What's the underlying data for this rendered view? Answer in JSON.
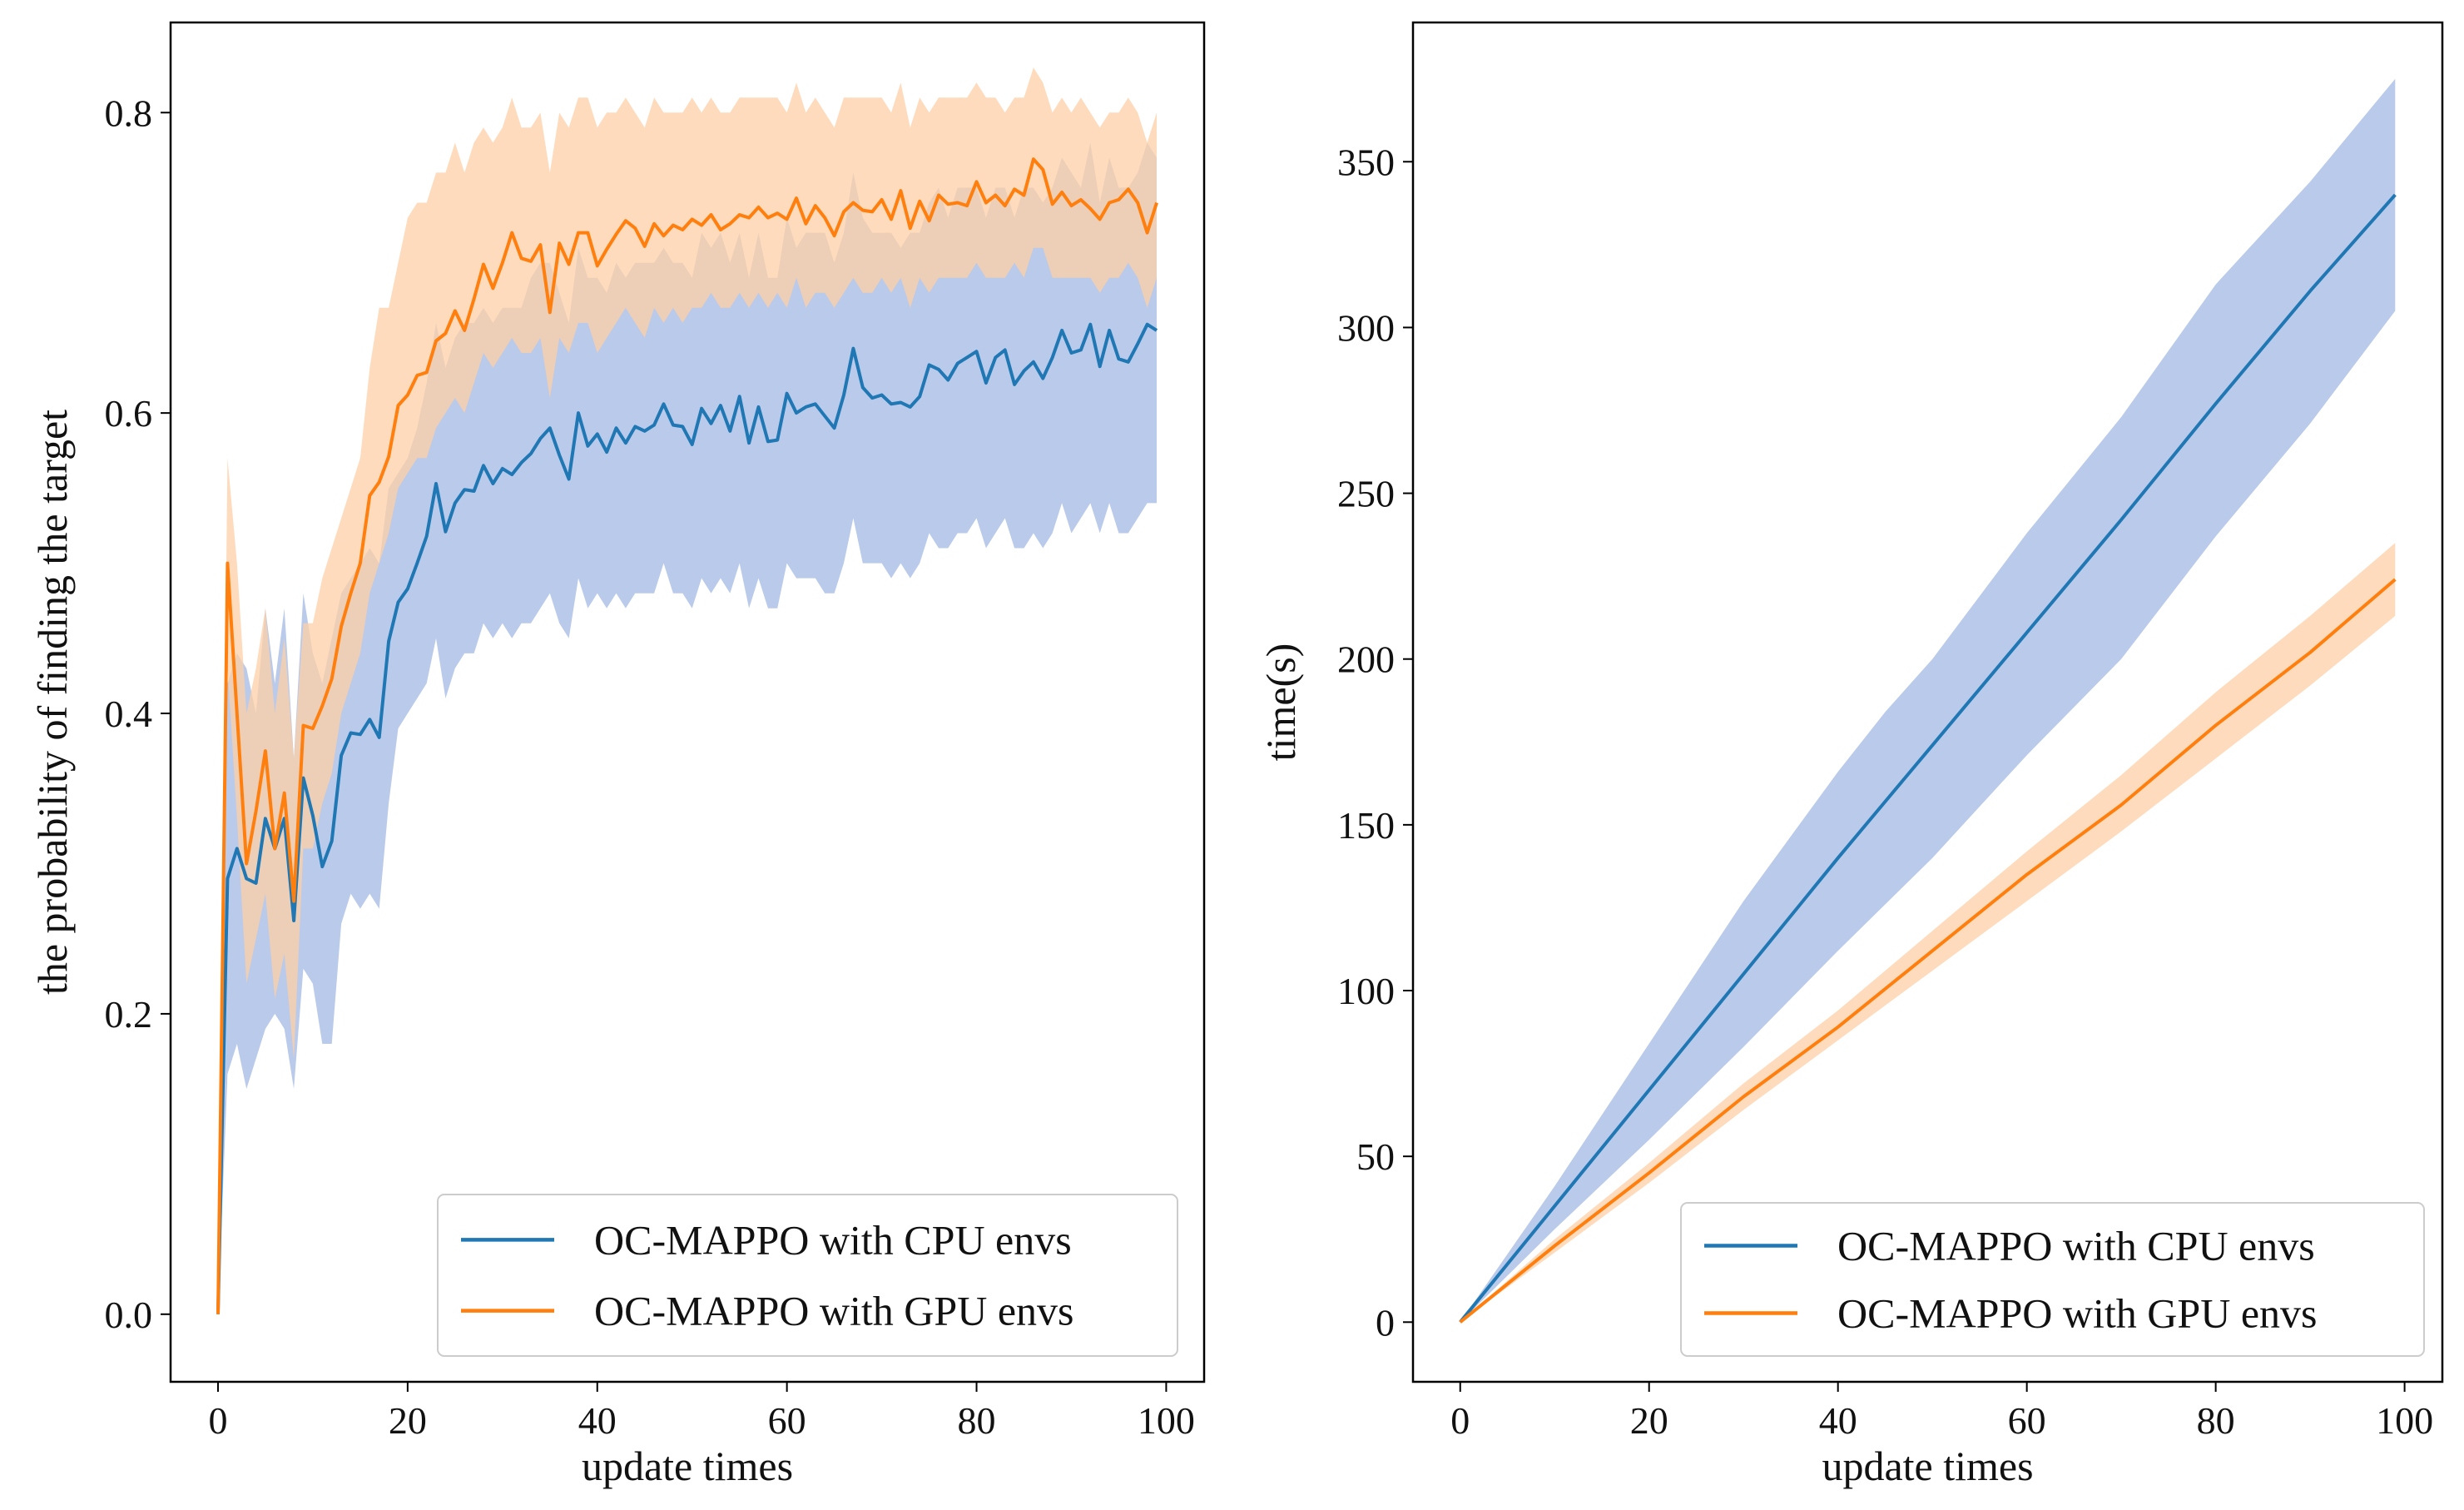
{
  "colors": {
    "cpu": "#1f77b4",
    "gpu": "#ff7f0e",
    "cpu_band": "#aec1e6",
    "gpu_band": "#fdcfa6"
  },
  "chart_data": [
    {
      "type": "line",
      "xlabel": "update times",
      "ylabel": "the probability of finding the target",
      "xlim": [
        -5,
        104
      ],
      "ylim": [
        -0.045,
        0.86
      ],
      "xticks": [
        "0",
        "20",
        "40",
        "60",
        "80",
        "100"
      ],
      "yticks": [
        "0.0",
        "0.2",
        "0.4",
        "0.6",
        "0.8"
      ],
      "legend_position": "lower-right",
      "grid": false,
      "series": [
        {
          "name": "OC-MAPPO with CPU envs",
          "color_key": "cpu",
          "x": [
            0,
            1,
            2,
            3,
            4,
            5,
            6,
            7,
            8,
            9,
            10,
            11,
            12,
            13,
            14,
            15,
            16,
            17,
            18,
            19,
            20,
            21,
            22,
            23,
            24,
            25,
            26,
            27,
            28,
            29,
            30,
            31,
            32,
            33,
            34,
            35,
            36,
            37,
            38,
            39,
            40,
            41,
            42,
            43,
            44,
            45,
            46,
            47,
            48,
            49,
            50,
            51,
            52,
            53,
            54,
            55,
            56,
            57,
            58,
            59,
            60,
            61,
            62,
            63,
            64,
            65,
            66,
            67,
            68,
            69,
            70,
            71,
            72,
            73,
            74,
            75,
            76,
            77,
            78,
            79,
            80,
            81,
            82,
            83,
            84,
            85,
            86,
            87,
            88,
            89,
            90,
            91,
            92,
            93,
            94,
            95,
            96,
            97,
            98,
            99
          ],
          "y": [
            0.0,
            0.29,
            0.31,
            0.29,
            0.287,
            0.33,
            0.31,
            0.33,
            0.262,
            0.357,
            0.332,
            0.298,
            0.315,
            0.372,
            0.387,
            0.386,
            0.396,
            0.384,
            0.448,
            0.474,
            0.483,
            0.5,
            0.518,
            0.553,
            0.521,
            0.54,
            0.549,
            0.548,
            0.565,
            0.553,
            0.563,
            0.559,
            0.567,
            0.573,
            0.583,
            0.59,
            0.572,
            0.556,
            0.6,
            0.578,
            0.586,
            0.574,
            0.59,
            0.58,
            0.591,
            0.588,
            0.592,
            0.606,
            0.592,
            0.591,
            0.579,
            0.603,
            0.593,
            0.605,
            0.588,
            0.611,
            0.58,
            0.604,
            0.581,
            0.582,
            0.613,
            0.6,
            0.604,
            0.606,
            0.598,
            0.59,
            0.612,
            0.643,
            0.617,
            0.61,
            0.612,
            0.606,
            0.607,
            0.604,
            0.611,
            0.632,
            0.629,
            0.622,
            0.633,
            0.637,
            0.641,
            0.62,
            0.637,
            0.642,
            0.619,
            0.628,
            0.634,
            0.623,
            0.637,
            0.655,
            0.64,
            0.642,
            0.659,
            0.631,
            0.655,
            0.636,
            0.634,
            0.646,
            0.659,
            0.655
          ],
          "band_lower": [
            0.0,
            0.16,
            0.18,
            0.15,
            0.17,
            0.19,
            0.2,
            0.19,
            0.15,
            0.23,
            0.22,
            0.18,
            0.18,
            0.26,
            0.28,
            0.27,
            0.28,
            0.27,
            0.34,
            0.39,
            0.4,
            0.41,
            0.42,
            0.45,
            0.41,
            0.43,
            0.44,
            0.44,
            0.46,
            0.45,
            0.46,
            0.45,
            0.46,
            0.46,
            0.47,
            0.48,
            0.46,
            0.45,
            0.49,
            0.47,
            0.48,
            0.47,
            0.48,
            0.47,
            0.48,
            0.48,
            0.48,
            0.5,
            0.48,
            0.48,
            0.47,
            0.49,
            0.48,
            0.49,
            0.48,
            0.5,
            0.47,
            0.49,
            0.47,
            0.47,
            0.5,
            0.49,
            0.49,
            0.49,
            0.48,
            0.48,
            0.5,
            0.53,
            0.5,
            0.5,
            0.5,
            0.49,
            0.5,
            0.49,
            0.5,
            0.52,
            0.51,
            0.51,
            0.52,
            0.52,
            0.53,
            0.51,
            0.52,
            0.53,
            0.51,
            0.51,
            0.52,
            0.51,
            0.52,
            0.54,
            0.52,
            0.53,
            0.54,
            0.52,
            0.54,
            0.52,
            0.52,
            0.53,
            0.54,
            0.54
          ],
          "band_upper": [
            0.0,
            0.42,
            0.44,
            0.43,
            0.4,
            0.47,
            0.42,
            0.47,
            0.37,
            0.48,
            0.44,
            0.42,
            0.45,
            0.48,
            0.49,
            0.5,
            0.51,
            0.5,
            0.55,
            0.56,
            0.57,
            0.59,
            0.62,
            0.66,
            0.63,
            0.65,
            0.66,
            0.66,
            0.67,
            0.66,
            0.67,
            0.67,
            0.67,
            0.69,
            0.7,
            0.7,
            0.68,
            0.66,
            0.71,
            0.69,
            0.69,
            0.68,
            0.7,
            0.69,
            0.7,
            0.7,
            0.7,
            0.71,
            0.7,
            0.7,
            0.69,
            0.72,
            0.71,
            0.72,
            0.7,
            0.72,
            0.69,
            0.72,
            0.69,
            0.69,
            0.73,
            0.71,
            0.72,
            0.72,
            0.72,
            0.7,
            0.72,
            0.76,
            0.73,
            0.72,
            0.72,
            0.72,
            0.71,
            0.72,
            0.72,
            0.74,
            0.75,
            0.73,
            0.75,
            0.75,
            0.75,
            0.73,
            0.75,
            0.75,
            0.73,
            0.75,
            0.75,
            0.74,
            0.75,
            0.77,
            0.76,
            0.75,
            0.78,
            0.74,
            0.77,
            0.75,
            0.75,
            0.76,
            0.78,
            0.77
          ]
        },
        {
          "name": "OC-MAPPO with GPU envs",
          "color_key": "gpu",
          "x": [
            0,
            1,
            2,
            3,
            4,
            5,
            6,
            7,
            8,
            9,
            10,
            11,
            12,
            13,
            14,
            15,
            16,
            17,
            18,
            19,
            20,
            21,
            22,
            23,
            24,
            25,
            26,
            27,
            28,
            29,
            30,
            31,
            32,
            33,
            34,
            35,
            36,
            37,
            38,
            39,
            40,
            41,
            42,
            43,
            44,
            45,
            46,
            47,
            48,
            49,
            50,
            51,
            52,
            53,
            54,
            55,
            56,
            57,
            58,
            59,
            60,
            61,
            62,
            63,
            64,
            65,
            66,
            67,
            68,
            69,
            70,
            71,
            72,
            73,
            74,
            75,
            76,
            77,
            78,
            79,
            80,
            81,
            82,
            83,
            84,
            85,
            86,
            87,
            88,
            89,
            90,
            91,
            92,
            93,
            94,
            95,
            96,
            97,
            98,
            99
          ],
          "y": [
            0.0,
            0.5,
            0.4,
            0.3,
            0.335,
            0.375,
            0.31,
            0.347,
            0.275,
            0.392,
            0.39,
            0.405,
            0.423,
            0.458,
            0.48,
            0.5,
            0.545,
            0.554,
            0.571,
            0.605,
            0.612,
            0.625,
            0.627,
            0.648,
            0.653,
            0.668,
            0.655,
            0.676,
            0.699,
            0.683,
            0.7,
            0.72,
            0.703,
            0.701,
            0.712,
            0.667,
            0.713,
            0.699,
            0.72,
            0.72,
            0.698,
            0.709,
            0.719,
            0.728,
            0.723,
            0.711,
            0.726,
            0.718,
            0.725,
            0.722,
            0.729,
            0.725,
            0.732,
            0.722,
            0.726,
            0.732,
            0.73,
            0.737,
            0.73,
            0.733,
            0.729,
            0.743,
            0.726,
            0.738,
            0.73,
            0.718,
            0.734,
            0.74,
            0.735,
            0.734,
            0.742,
            0.729,
            0.748,
            0.723,
            0.741,
            0.728,
            0.745,
            0.739,
            0.74,
            0.738,
            0.754,
            0.74,
            0.745,
            0.738,
            0.749,
            0.745,
            0.769,
            0.762,
            0.739,
            0.747,
            0.738,
            0.742,
            0.736,
            0.729,
            0.74,
            0.742,
            0.749,
            0.74,
            0.72,
            0.74
          ],
          "band_lower": [
            0.0,
            0.43,
            0.33,
            0.22,
            0.25,
            0.28,
            0.21,
            0.24,
            0.17,
            0.31,
            0.31,
            0.34,
            0.36,
            0.4,
            0.42,
            0.44,
            0.48,
            0.5,
            0.52,
            0.55,
            0.56,
            0.57,
            0.57,
            0.59,
            0.6,
            0.61,
            0.6,
            0.62,
            0.64,
            0.63,
            0.64,
            0.65,
            0.64,
            0.64,
            0.65,
            0.61,
            0.65,
            0.64,
            0.66,
            0.66,
            0.64,
            0.65,
            0.66,
            0.67,
            0.66,
            0.65,
            0.67,
            0.66,
            0.67,
            0.66,
            0.67,
            0.67,
            0.68,
            0.67,
            0.67,
            0.68,
            0.67,
            0.68,
            0.67,
            0.68,
            0.67,
            0.69,
            0.67,
            0.68,
            0.68,
            0.67,
            0.68,
            0.69,
            0.68,
            0.68,
            0.69,
            0.68,
            0.69,
            0.67,
            0.69,
            0.68,
            0.69,
            0.69,
            0.69,
            0.69,
            0.7,
            0.69,
            0.69,
            0.69,
            0.7,
            0.69,
            0.71,
            0.71,
            0.69,
            0.69,
            0.69,
            0.69,
            0.69,
            0.68,
            0.69,
            0.69,
            0.7,
            0.69,
            0.67,
            0.69
          ],
          "band_upper": [
            0.0,
            0.57,
            0.5,
            0.4,
            0.43,
            0.47,
            0.4,
            0.45,
            0.37,
            0.46,
            0.46,
            0.49,
            0.51,
            0.53,
            0.55,
            0.57,
            0.63,
            0.67,
            0.67,
            0.7,
            0.73,
            0.74,
            0.74,
            0.76,
            0.76,
            0.78,
            0.76,
            0.78,
            0.79,
            0.78,
            0.79,
            0.81,
            0.79,
            0.79,
            0.8,
            0.76,
            0.8,
            0.79,
            0.81,
            0.81,
            0.79,
            0.8,
            0.8,
            0.81,
            0.8,
            0.79,
            0.81,
            0.8,
            0.8,
            0.8,
            0.81,
            0.8,
            0.81,
            0.8,
            0.8,
            0.81,
            0.81,
            0.81,
            0.81,
            0.81,
            0.8,
            0.82,
            0.8,
            0.81,
            0.8,
            0.79,
            0.81,
            0.81,
            0.81,
            0.81,
            0.81,
            0.8,
            0.82,
            0.79,
            0.81,
            0.8,
            0.81,
            0.81,
            0.81,
            0.81,
            0.82,
            0.81,
            0.81,
            0.8,
            0.81,
            0.81,
            0.83,
            0.82,
            0.8,
            0.81,
            0.8,
            0.81,
            0.8,
            0.79,
            0.8,
            0.8,
            0.81,
            0.8,
            0.78,
            0.8
          ]
        }
      ]
    },
    {
      "type": "line",
      "xlabel": "update times",
      "ylabel": "time(s)",
      "xlim": [
        -5,
        104
      ],
      "ylim": [
        -18,
        392
      ],
      "xticks": [
        "0",
        "20",
        "40",
        "60",
        "80",
        "100"
      ],
      "yticks": [
        "0",
        "50",
        "100",
        "150",
        "200",
        "250",
        "300",
        "350"
      ],
      "legend_position": "lower-right",
      "grid": false,
      "series": [
        {
          "name": "OC-MAPPO with CPU envs",
          "color_key": "cpu",
          "x": [
            0,
            10,
            20,
            30,
            40,
            45,
            50,
            60,
            70,
            80,
            90,
            99
          ],
          "y": [
            0,
            35,
            70,
            105,
            140,
            157,
            174,
            208,
            242,
            277,
            311,
            340
          ],
          "band_lower": [
            0,
            28,
            55,
            83,
            112,
            126,
            140,
            171,
            200,
            237,
            271,
            305
          ],
          "band_upper": [
            0,
            41,
            84,
            127,
            166,
            184,
            200,
            238,
            273,
            313,
            344,
            375
          ]
        },
        {
          "name": "OC-MAPPO with GPU envs",
          "color_key": "gpu",
          "x": [
            0,
            10,
            20,
            30,
            40,
            50,
            60,
            70,
            80,
            90,
            99
          ],
          "y": [
            0,
            23,
            45,
            68,
            89,
            112,
            135,
            156,
            180,
            202,
            224
          ],
          "band_lower": [
            0,
            21,
            42,
            64,
            85,
            106,
            127,
            148,
            170,
            192,
            213
          ],
          "band_upper": [
            0,
            25,
            48,
            72,
            94,
            118,
            142,
            165,
            190,
            213,
            235
          ]
        }
      ]
    }
  ]
}
